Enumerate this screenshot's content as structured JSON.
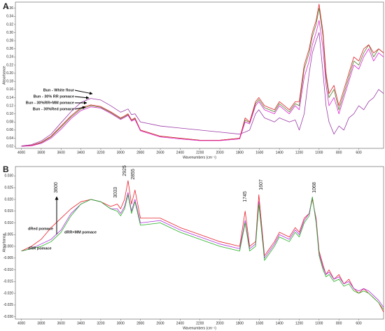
{
  "chart_data": [
    {
      "type": "line",
      "panel_label": "A",
      "ylabel": "Absorbance",
      "xlabel": "Wavenumbers (cm⁻¹)",
      "xlim": [
        4060,
        350
      ],
      "ylim": [
        0.015,
        0.375
      ],
      "xticks": [
        4000,
        3800,
        3600,
        3400,
        3200,
        3000,
        2800,
        2600,
        2400,
        2200,
        2000,
        1800,
        1600,
        1400,
        1200,
        1000,
        800,
        600
      ],
      "yticks": [
        0.02,
        0.04,
        0.06,
        0.08,
        {
          "value": 0.1,
          "label": "0.10"
        },
        0.12,
        0.14,
        0.16,
        0.18,
        {
          "value": 0.2,
          "label": "0.20"
        },
        0.22,
        0.24,
        0.26,
        0.28,
        {
          "value": 0.3,
          "label": "0.30"
        },
        0.32,
        0.34,
        0.36
      ],
      "x": [
        4000,
        3900,
        3800,
        3700,
        3600,
        3500,
        3400,
        3300,
        3200,
        3100,
        3000,
        2960,
        2925,
        2890,
        2855,
        2800,
        2600,
        2400,
        2200,
        2000,
        1800,
        1745,
        1700,
        1640,
        1607,
        1550,
        1450,
        1400,
        1300,
        1240,
        1200,
        1150,
        1100,
        1068,
        1030,
        1000,
        960,
        930,
        900,
        850,
        800,
        750,
        700,
        650,
        600,
        550,
        500,
        450,
        400,
        350
      ],
      "series": [
        {
          "name": "Bun - White flour",
          "color": "#9a3aa6",
          "values": [
            0.021,
            0.024,
            0.033,
            0.05,
            0.078,
            0.105,
            0.128,
            0.138,
            0.134,
            0.12,
            0.104,
            0.108,
            0.112,
            0.098,
            0.1,
            0.08,
            0.07,
            0.065,
            0.06,
            0.055,
            0.05,
            0.055,
            0.06,
            0.1,
            0.11,
            0.09,
            0.08,
            0.09,
            0.08,
            0.085,
            0.06,
            0.1,
            0.2,
            0.25,
            0.28,
            0.3,
            0.2,
            0.12,
            0.08,
            0.05,
            0.07,
            0.06,
            0.09,
            0.1,
            0.12,
            0.11,
            0.13,
            0.14,
            0.16,
            0.15
          ]
        },
        {
          "name": "Bun - 30% RR pomace",
          "color": "#4e7d2a",
          "values": [
            0.02,
            0.022,
            0.029,
            0.043,
            0.067,
            0.092,
            0.112,
            0.12,
            0.116,
            0.103,
            0.088,
            0.093,
            0.098,
            0.084,
            0.088,
            0.06,
            0.045,
            0.04,
            0.035,
            0.035,
            0.04,
            0.085,
            0.078,
            0.125,
            0.135,
            0.115,
            0.105,
            0.125,
            0.105,
            0.125,
            0.12,
            0.21,
            0.25,
            0.29,
            0.32,
            0.36,
            0.29,
            0.19,
            0.14,
            0.16,
            0.11,
            0.15,
            0.19,
            0.23,
            0.22,
            0.25,
            0.27,
            0.24,
            0.26,
            0.25
          ]
        },
        {
          "name": "Bun - 30%RR+MM pomace",
          "color": "#e0202a",
          "values": [
            0.02,
            0.022,
            0.03,
            0.045,
            0.07,
            0.095,
            0.115,
            0.122,
            0.118,
            0.105,
            0.09,
            0.095,
            0.1,
            0.085,
            0.09,
            0.06,
            0.045,
            0.04,
            0.035,
            0.035,
            0.04,
            0.09,
            0.08,
            0.13,
            0.14,
            0.12,
            0.11,
            0.13,
            0.11,
            0.13,
            0.13,
            0.22,
            0.26,
            0.3,
            0.33,
            0.37,
            0.3,
            0.2,
            0.15,
            0.17,
            0.12,
            0.16,
            0.2,
            0.24,
            0.23,
            0.26,
            0.27,
            0.25,
            0.26,
            0.25
          ]
        },
        {
          "name": "Bun - 30%Red pomace",
          "color": "#e024d4",
          "values": [
            0.02,
            0.021,
            0.027,
            0.04,
            0.062,
            0.088,
            0.108,
            0.117,
            0.114,
            0.101,
            0.086,
            0.091,
            0.096,
            0.082,
            0.086,
            0.058,
            0.043,
            0.038,
            0.034,
            0.034,
            0.038,
            0.08,
            0.075,
            0.12,
            0.13,
            0.11,
            0.1,
            0.12,
            0.1,
            0.12,
            0.11,
            0.19,
            0.23,
            0.27,
            0.3,
            0.33,
            0.26,
            0.17,
            0.12,
            0.14,
            0.1,
            0.14,
            0.18,
            0.22,
            0.21,
            0.24,
            0.26,
            0.23,
            0.25,
            0.24
          ]
        }
      ]
    },
    {
      "type": "line",
      "panel_label": "B",
      "ylabel": "Absorbance",
      "xlabel": "Wavenumbers (cm⁻¹)",
      "xlim": [
        4060,
        350
      ],
      "ylim": [
        -0.031,
        0.034
      ],
      "xticks": [
        4000,
        3800,
        3600,
        3400,
        3200,
        3000,
        2800,
        2600,
        2400,
        2200,
        2000,
        1800,
        1600,
        1400,
        1200,
        1000,
        800,
        600
      ],
      "yticks": [
        {
          "value": 0.03,
          "label": "0.030"
        },
        0.025,
        {
          "value": 0.02,
          "label": "0.020"
        },
        0.015,
        {
          "value": 0.01,
          "label": "0.010"
        },
        0.005,
        {
          "value": 0,
          "label": "0.000"
        },
        -0.005,
        {
          "value": -0.01,
          "label": "-0.010"
        },
        -0.015,
        {
          "value": -0.02,
          "label": "-0.020"
        },
        -0.025,
        {
          "value": -0.03,
          "label": "-0.030"
        }
      ],
      "peak_labels": [
        "3600",
        "3033",
        "2925",
        "2855",
        "1745",
        "1607",
        "1068"
      ],
      "x": [
        4000,
        3900,
        3800,
        3700,
        3600,
        3500,
        3400,
        3300,
        3200,
        3100,
        3033,
        3000,
        2960,
        2925,
        2890,
        2855,
        2800,
        2600,
        2400,
        2200,
        2000,
        1800,
        1745,
        1700,
        1640,
        1607,
        1550,
        1450,
        1400,
        1300,
        1240,
        1200,
        1150,
        1100,
        1068,
        1030,
        1000,
        960,
        930,
        900,
        850,
        800,
        750,
        700,
        650,
        600,
        550,
        500,
        450,
        400,
        350
      ],
      "series": [
        {
          "name": "dRed pomace",
          "color": "#e8202a",
          "values": [
            -0.002,
            0,
            0.003,
            0.008,
            0.012,
            0.016,
            0.019,
            0.02,
            0.019,
            0.017,
            0.018,
            0.016,
            0.02,
            0.028,
            0.018,
            0.024,
            0.012,
            0.012,
            0.008,
            0.005,
            0.002,
            0,
            0.015,
            0,
            0.002,
            0.022,
            -0.004,
            0.002,
            0.006,
            0.004,
            0.008,
            0.006,
            0.012,
            0.014,
            0.02,
            0.012,
            -0.002,
            -0.008,
            -0.012,
            -0.01,
            -0.014,
            -0.012,
            -0.016,
            -0.014,
            -0.018,
            -0.02,
            -0.018,
            -0.02,
            -0.022,
            -0.024,
            -0.028
          ]
        },
        {
          "name": "dRR+MM pomace",
          "color": "#b030e0",
          "values": [
            -0.002,
            -0.001,
            0.001,
            0.003,
            0.007,
            0.014,
            0.018,
            0.02,
            0.019,
            0.016,
            0.016,
            0.014,
            0.017,
            0.023,
            0.015,
            0.02,
            0.01,
            0.011,
            0.007,
            0.004,
            0.001,
            -0.001,
            0.011,
            -0.001,
            0.001,
            0.019,
            -0.005,
            0.001,
            0.005,
            0.003,
            0.007,
            0.005,
            0.011,
            0.014,
            0.021,
            0.011,
            -0.003,
            -0.009,
            -0.012,
            -0.011,
            -0.014,
            -0.013,
            -0.016,
            -0.015,
            -0.018,
            -0.019,
            -0.018,
            -0.019,
            -0.021,
            -0.023,
            -0.026
          ]
        },
        {
          "name": "dRR pomace",
          "color": "#22b022",
          "values": [
            -0.002,
            -0.001,
            0,
            0.002,
            0.006,
            0.013,
            0.018,
            0.02,
            0.019,
            0.016,
            0.015,
            0.013,
            0.016,
            0.022,
            0.014,
            0.019,
            0.009,
            0.01,
            0.006,
            0.003,
            0,
            -0.002,
            0.01,
            -0.002,
            0,
            0.018,
            -0.006,
            0,
            0.004,
            0.002,
            0.006,
            0.004,
            0.01,
            0.013,
            0.021,
            0.01,
            -0.004,
            -0.01,
            -0.013,
            -0.012,
            -0.015,
            -0.014,
            -0.017,
            -0.016,
            -0.019,
            -0.02,
            -0.019,
            -0.02,
            -0.022,
            -0.024,
            -0.027
          ]
        }
      ]
    }
  ]
}
